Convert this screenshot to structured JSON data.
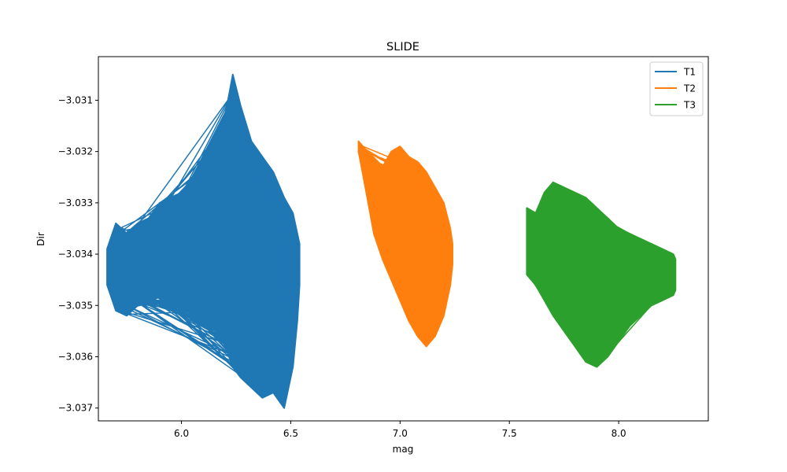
{
  "chart_data": {
    "type": "line",
    "title": "SLIDE",
    "xlabel": "mag",
    "ylabel": "Dir",
    "xlim": [
      5.62,
      8.41
    ],
    "ylim": [
      -3.03725,
      -3.03015
    ],
    "xticks": [
      6.0,
      6.5,
      7.0,
      7.5,
      8.0
    ],
    "xtick_labels": [
      "6.0",
      "6.5",
      "7.0",
      "7.5",
      "8.0"
    ],
    "yticks": [
      -3.031,
      -3.032,
      -3.033,
      -3.034,
      -3.035,
      -3.036,
      -3.037
    ],
    "ytick_labels": [
      "−3.031",
      "−3.032",
      "−3.033",
      "−3.034",
      "−3.035",
      "−3.036",
      "−3.037"
    ],
    "legend_position": "top-right",
    "series": [
      {
        "name": "T1",
        "color": "#1f77b4",
        "envelope": [
          [
            5.66,
            -3.0339,
            -3.0346
          ],
          [
            5.7,
            -3.0334,
            -3.0351
          ],
          [
            5.75,
            -3.0336,
            -3.0352
          ],
          [
            5.8,
            -3.0334,
            -3.035
          ],
          [
            5.85,
            -3.0333,
            -3.0349
          ],
          [
            5.9,
            -3.033,
            -3.0348
          ],
          [
            5.95,
            -3.0329,
            -3.0347
          ],
          [
            6.0,
            -3.0328,
            -3.0348
          ],
          [
            6.05,
            -3.0325,
            -3.035
          ],
          [
            6.1,
            -3.0321,
            -3.0352
          ],
          [
            6.15,
            -3.0317,
            -3.0354
          ],
          [
            6.2,
            -3.0313,
            -3.0358
          ],
          [
            6.235,
            -3.0305,
            -3.0362
          ],
          [
            6.27,
            -3.0311,
            -3.0364
          ],
          [
            6.32,
            -3.0318,
            -3.0366
          ],
          [
            6.37,
            -3.0321,
            -3.0368
          ],
          [
            6.42,
            -3.0324,
            -3.0367
          ],
          [
            6.47,
            -3.0329,
            -3.037
          ],
          [
            6.51,
            -3.0332,
            -3.0362
          ],
          [
            6.53,
            -3.0336,
            -3.0353
          ],
          [
            6.54,
            -3.0338,
            -3.0346
          ]
        ]
      },
      {
        "name": "T2",
        "color": "#ff7f0e",
        "envelope": [
          [
            6.81,
            -3.0318,
            -3.032
          ],
          [
            6.85,
            -3.032,
            -3.0329
          ],
          [
            6.88,
            -3.0322,
            -3.0336
          ],
          [
            6.92,
            -3.0323,
            -3.0341
          ],
          [
            6.96,
            -3.032,
            -3.0345
          ],
          [
            7.0,
            -3.0319,
            -3.0349
          ],
          [
            7.04,
            -3.0321,
            -3.0353
          ],
          [
            7.08,
            -3.0322,
            -3.0356
          ],
          [
            7.12,
            -3.0324,
            -3.0358
          ],
          [
            7.16,
            -3.0327,
            -3.0356
          ],
          [
            7.2,
            -3.033,
            -3.0352
          ],
          [
            7.23,
            -3.0335,
            -3.0346
          ],
          [
            7.24,
            -3.0338,
            -3.0342
          ]
        ]
      },
      {
        "name": "T3",
        "color": "#2ca02c",
        "envelope": [
          [
            7.58,
            -3.0331,
            -3.0344
          ],
          [
            7.62,
            -3.0332,
            -3.0346
          ],
          [
            7.66,
            -3.0328,
            -3.0349
          ],
          [
            7.7,
            -3.0326,
            -3.0352
          ],
          [
            7.75,
            -3.0327,
            -3.0355
          ],
          [
            7.8,
            -3.0328,
            -3.0358
          ],
          [
            7.85,
            -3.0329,
            -3.0361
          ],
          [
            7.9,
            -3.0331,
            -3.0362
          ],
          [
            7.95,
            -3.0333,
            -3.036
          ],
          [
            8.0,
            -3.0335,
            -3.0357
          ],
          [
            8.05,
            -3.0336,
            -3.0354
          ],
          [
            8.1,
            -3.0337,
            -3.0352
          ],
          [
            8.15,
            -3.0338,
            -3.035
          ],
          [
            8.2,
            -3.0339,
            -3.0349
          ],
          [
            8.25,
            -3.034,
            -3.0348
          ],
          [
            8.26,
            -3.0341,
            -3.0347
          ]
        ]
      }
    ]
  }
}
